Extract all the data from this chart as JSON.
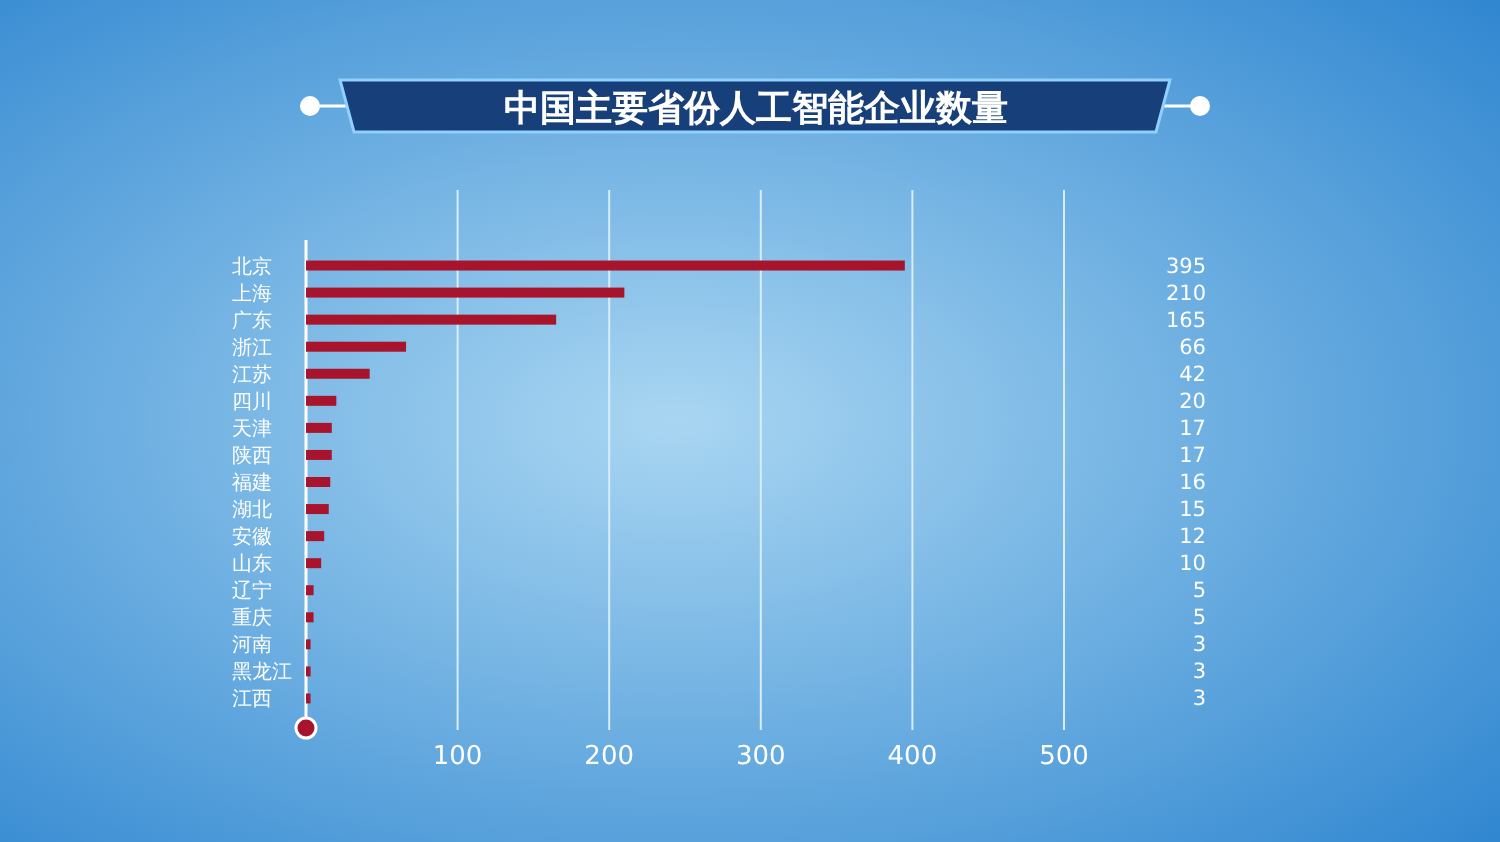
{
  "chart_data": {
    "type": "bar",
    "orientation": "horizontal",
    "title": "中国主要省份人工智能企业数量",
    "categories": [
      "北京",
      "上海",
      "广东",
      "浙江",
      "江苏",
      "四川",
      "天津",
      "陕西",
      "福建",
      "湖北",
      "安徽",
      "山东",
      "辽宁",
      "重庆",
      "河南",
      "黑龙江",
      "江西"
    ],
    "values": [
      395,
      210,
      165,
      66,
      42,
      20,
      17,
      17,
      16,
      15,
      12,
      10,
      5,
      5,
      3,
      3,
      3
    ],
    "color": "#a8142c",
    "xlim": [
      0,
      500
    ],
    "xticks": [
      100,
      200,
      300,
      400,
      500
    ],
    "grid": "x",
    "data_labels": true
  }
}
